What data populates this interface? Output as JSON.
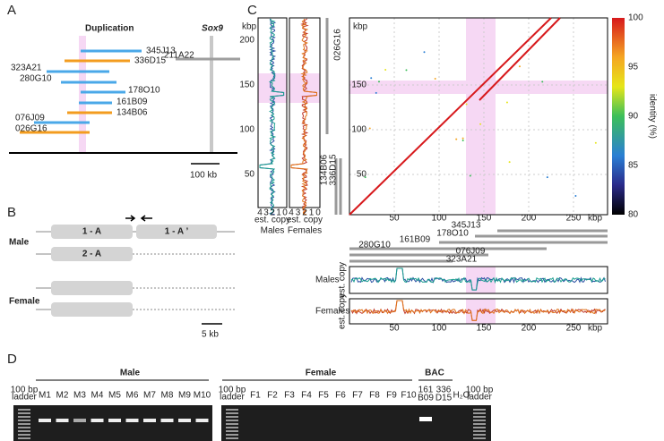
{
  "panel_labels": [
    "A",
    "B",
    "C",
    "D"
  ],
  "panel_a": {
    "duplication": "Duplication",
    "gene": "Sox9",
    "clones": [
      {
        "name": "211A22",
        "color": "#9e9e9e"
      },
      {
        "name": "345J13",
        "color": "#4aa8e8"
      },
      {
        "name": "336D15",
        "color": "#f39c1f"
      },
      {
        "name": "323A21",
        "color": "#4aa8e8"
      },
      {
        "name": "280G10",
        "color": "#4aa8e8"
      },
      {
        "name": "178O10",
        "color": "#4aa8e8"
      },
      {
        "name": "161B09",
        "color": "#4aa8e8"
      },
      {
        "name": "134B06",
        "color": "#f39c1f"
      },
      {
        "name": "076J09",
        "color": "#4aa8e8"
      },
      {
        "name": "026G16",
        "color": "#f39c1f"
      }
    ],
    "scale_bar": "100 kb"
  },
  "panel_b": {
    "rows": [
      "1 - A",
      "1 - A ’",
      "2 - A"
    ],
    "sexes": [
      "Male",
      "Female"
    ],
    "scale_bar": "5 kb"
  },
  "panel_c": {
    "unit": "kbp",
    "profile_ticks": [
      200,
      150,
      100,
      50
    ],
    "copy_ticks": [
      4,
      3,
      2,
      1,
      0
    ],
    "copy_label": "est. copy",
    "profiles": [
      "Males",
      "Females"
    ],
    "dotplot_xticks": [
      50,
      100,
      150,
      200,
      250
    ],
    "dotplot_yticks": [
      150,
      100,
      50
    ],
    "vertical_clones": [
      "026G16",
      "134B06",
      "336D15"
    ],
    "horizontal_clones": [
      "345J13",
      "178O10",
      "161B09",
      "280G10",
      "076J09",
      "323A21"
    ],
    "colorbar": {
      "label": "identity (%)",
      "ticks": [
        100,
        95,
        90,
        85,
        80
      ]
    }
  },
  "panel_d": {
    "groups": [
      "Male",
      "Female",
      "BAC"
    ],
    "ladder": [
      "100 bp",
      "ladder"
    ],
    "male_lanes": [
      "M1",
      "M2",
      "M3",
      "M4",
      "M5",
      "M6",
      "M7",
      "M8",
      "M9",
      "M10"
    ],
    "female_lanes": [
      "F1",
      "F2",
      "F3",
      "F4",
      "F5",
      "F6",
      "F7",
      "F8",
      "F9",
      "F10"
    ],
    "bac_lanes": [
      [
        "161",
        "B09"
      ],
      [
        "336",
        "D15"
      ]
    ],
    "water": "H₂O"
  }
}
